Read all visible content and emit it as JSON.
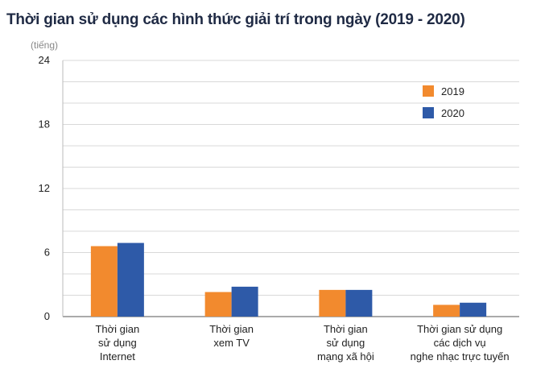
{
  "chart_data": {
    "type": "bar",
    "title": "Thời gian sử dụng các hình thức giải trí trong ngày (2019 - 2020)",
    "ylabel": "(tiếng)",
    "xlabel": "",
    "ylim": [
      0,
      24
    ],
    "yticks": [
      "24",
      "18",
      "12",
      "6",
      "0"
    ],
    "categories": [
      [
        "Thời gian",
        "sử dụng",
        "Internet"
      ],
      [
        "Thời gian",
        "xem TV"
      ],
      [
        "Thời gian",
        "sử dụng",
        "mạng xã hội"
      ],
      [
        "Thời gian sử dụng",
        "các dịch vụ",
        "nghe nhạc trực tuyến"
      ]
    ],
    "series": [
      {
        "name": "2019",
        "color": "#f28a2e",
        "values": [
          6.6,
          2.3,
          2.5,
          1.1
        ]
      },
      {
        "name": "2020",
        "color": "#2e5aa8",
        "values": [
          6.9,
          2.8,
          2.5,
          1.3
        ]
      }
    ],
    "grid": true,
    "legend": "top-right"
  }
}
